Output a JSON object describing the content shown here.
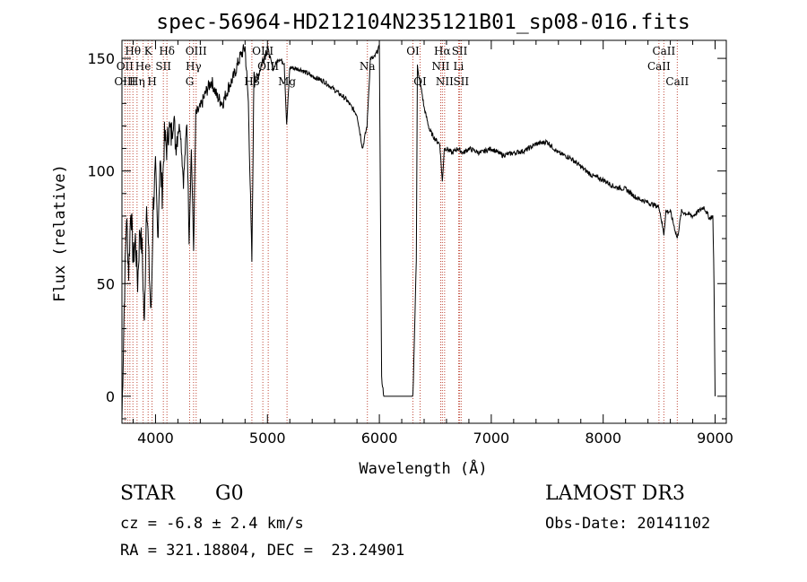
{
  "chart_data": {
    "type": "line",
    "title": "spec-56964-HD212104N235121B01_sp08-016.fits",
    "xlabel": "Wavelength (Å)",
    "ylabel": "Flux (relative)",
    "xlim": [
      3700,
      9100
    ],
    "ylim": [
      -12,
      158
    ],
    "xticks": [
      4000,
      5000,
      6000,
      7000,
      8000,
      9000
    ],
    "yticks": [
      0,
      50,
      100,
      150
    ],
    "grid": false,
    "series": [
      {
        "name": "spectrum",
        "x": [
          3700,
          3720,
          3740,
          3760,
          3780,
          3800,
          3820,
          3840,
          3860,
          3880,
          3900,
          3920,
          3940,
          3960,
          3980,
          4000,
          4020,
          4040,
          4060,
          4080,
          4100,
          4120,
          4140,
          4160,
          4180,
          4200,
          4220,
          4250,
          4280,
          4300,
          4320,
          4340,
          4360,
          4400,
          4450,
          4500,
          4550,
          4600,
          4650,
          4700,
          4750,
          4800,
          4830,
          4861,
          4880,
          4900,
          4950,
          5000,
          5050,
          5100,
          5150,
          5172,
          5200,
          5300,
          5400,
          5500,
          5600,
          5700,
          5800,
          5850,
          5890,
          5920,
          5950,
          6000,
          6020,
          6040,
          6060,
          6100,
          6200,
          6300,
          6330,
          6340,
          6350,
          6380,
          6400,
          6450,
          6500,
          6540,
          6563,
          6580,
          6600,
          6650,
          6700,
          6750,
          6800,
          6900,
          7000,
          7100,
          7200,
          7300,
          7400,
          7500,
          7600,
          7700,
          7800,
          7900,
          8000,
          8100,
          8200,
          8300,
          8400,
          8500,
          8542,
          8560,
          8600,
          8662,
          8700,
          8800,
          8900,
          8950,
          8980,
          8990,
          9000
        ],
        "values": [
          -10,
          40,
          80,
          55,
          85,
          60,
          70,
          50,
          75,
          65,
          30,
          90,
          60,
          35,
          85,
          100,
          70,
          105,
          90,
          115,
          110,
          120,
          115,
          125,
          112,
          118,
          120,
          95,
          122,
          70,
          110,
          65,
          125,
          128,
          135,
          140,
          133,
          130,
          137,
          142,
          150,
          155,
          130,
          60,
          145,
          140,
          148,
          155,
          145,
          150,
          148,
          120,
          146,
          145,
          142,
          140,
          136,
          132,
          125,
          110,
          120,
          150,
          150,
          155,
          8,
          0,
          0,
          0,
          0,
          0,
          60,
          148,
          142,
          135,
          128,
          118,
          114,
          112,
          95,
          110,
          110,
          108,
          110,
          108,
          110,
          108,
          110,
          107,
          108,
          109,
          112,
          113,
          108,
          106,
          102,
          98,
          96,
          93,
          92,
          88,
          86,
          84,
          72,
          82,
          82,
          70,
          82,
          80,
          84,
          79,
          80,
          50,
          0
        ]
      }
    ],
    "line_labels": [
      {
        "label": "Hθ",
        "wavelength": 3798,
        "row": 1
      },
      {
        "label": "OII",
        "wavelength": 3727,
        "row": 2
      },
      {
        "label": "OIII",
        "wavelength": 3727,
        "row": 3
      },
      {
        "label": "He",
        "wavelength": 3889,
        "row": 2
      },
      {
        "label": "Hη",
        "wavelength": 3835,
        "row": 3
      },
      {
        "label": "K",
        "wavelength": 3934,
        "row": 1
      },
      {
        "label": "SII",
        "wavelength": 4070,
        "row": 2
      },
      {
        "label": "H",
        "wavelength": 3969,
        "row": 3
      },
      {
        "label": "Hδ",
        "wavelength": 4102,
        "row": 1
      },
      {
        "label": "OIII",
        "wavelength": 4363,
        "row": 1
      },
      {
        "label": "Hγ",
        "wavelength": 4340,
        "row": 2
      },
      {
        "label": "G",
        "wavelength": 4305,
        "row": 3
      },
      {
        "label": "OIII",
        "wavelength": 4959,
        "row": 1
      },
      {
        "label": "OIII",
        "wavelength": 5007,
        "row": 2
      },
      {
        "label": "Hβ",
        "wavelength": 4861,
        "row": 3
      },
      {
        "label": "Mg",
        "wavelength": 5175,
        "row": 3
      },
      {
        "label": "Na",
        "wavelength": 5893,
        "row": 2
      },
      {
        "label": "OI",
        "wavelength": 6300,
        "row": 1
      },
      {
        "label": "OI",
        "wavelength": 6364,
        "row": 3
      },
      {
        "label": "Hα",
        "wavelength": 6563,
        "row": 1
      },
      {
        "label": "NII",
        "wavelength": 6548,
        "row": 2
      },
      {
        "label": "NII",
        "wavelength": 6583,
        "row": 3
      },
      {
        "label": "SII",
        "wavelength": 6717,
        "row": 1
      },
      {
        "label": "Li",
        "wavelength": 6708,
        "row": 2
      },
      {
        "label": "SII",
        "wavelength": 6731,
        "row": 3
      },
      {
        "label": "CaII",
        "wavelength": 8542,
        "row": 1
      },
      {
        "label": "CaII",
        "wavelength": 8498,
        "row": 2
      },
      {
        "label": "CaII",
        "wavelength": 8662,
        "row": 3
      }
    ],
    "marker_lines": [
      3727,
      3750,
      3771,
      3798,
      3835,
      3889,
      3934,
      3969,
      4070,
      4102,
      4305,
      4340,
      4363,
      4861,
      4959,
      5007,
      5175,
      5893,
      6300,
      6364,
      6548,
      6563,
      6583,
      6708,
      6717,
      6731,
      8498,
      8542,
      8662
    ]
  },
  "footer": {
    "object_class": "STAR",
    "subclass": "G0",
    "survey": "LAMOST DR3",
    "cz": "cz = -6.8 ± 2.4 km/s",
    "obs_date": "Obs-Date: 20141102",
    "radec": "RA = 321.18804, DEC =  23.24901"
  },
  "colors": {
    "marker": "#c04a3a",
    "axis": "#000000",
    "spectrum": "#000000"
  }
}
